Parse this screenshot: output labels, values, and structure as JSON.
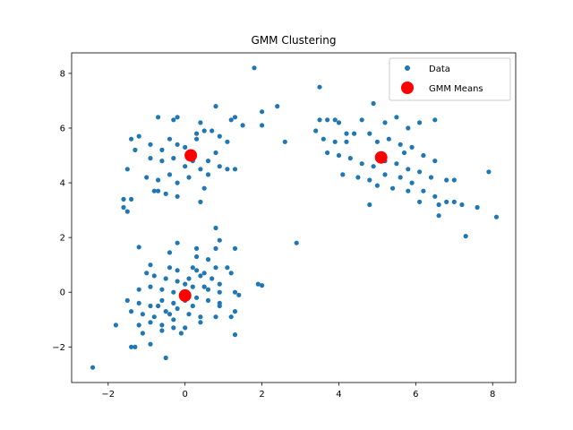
{
  "chart_data": {
    "type": "scatter",
    "title": "GMM Clustering",
    "xlabel": "",
    "ylabel": "",
    "xlim": [
      -2.95,
      8.6
    ],
    "ylim": [
      -3.3,
      8.75
    ],
    "xticks": [
      -2,
      0,
      2,
      4,
      6,
      8
    ],
    "yticks": [
      -2,
      0,
      2,
      4,
      6,
      8
    ],
    "xtick_labels": [
      "−2",
      "0",
      "2",
      "4",
      "6",
      "8"
    ],
    "ytick_labels": [
      "−2",
      "0",
      "2",
      "4",
      "6",
      "8"
    ],
    "grid": false,
    "legend": {
      "placement": "top-right",
      "entries": [
        "Data",
        "GMM Means"
      ]
    },
    "series": [
      {
        "name": "Data",
        "color": "#1f77b4",
        "marker": "circle-small",
        "points": [
          [
            -0.2,
            6.4
          ],
          [
            0.8,
            6.8
          ],
          [
            -0.7,
            6.4
          ],
          [
            -0.3,
            6.3
          ],
          [
            0.4,
            6.2
          ],
          [
            1.2,
            6.3
          ],
          [
            1.3,
            6.4
          ],
          [
            1.5,
            6.1
          ],
          [
            0.5,
            5.9
          ],
          [
            0.3,
            5.6
          ],
          [
            -1.4,
            5.6
          ],
          [
            -1.3,
            5.2
          ],
          [
            -1.2,
            5.7
          ],
          [
            -0.9,
            5.4
          ],
          [
            -0.6,
            5.2
          ],
          [
            -0.4,
            5.6
          ],
          [
            -0.2,
            5.4
          ],
          [
            0.0,
            5.3
          ],
          [
            0.3,
            5.8
          ],
          [
            0.7,
            5.9
          ],
          [
            0.9,
            5.7
          ],
          [
            1.1,
            5.5
          ],
          [
            0.8,
            5.1
          ],
          [
            0.6,
            4.8
          ],
          [
            0.9,
            4.6
          ],
          [
            1.1,
            4.5
          ],
          [
            1.3,
            4.5
          ],
          [
            -0.9,
            4.9
          ],
          [
            -0.6,
            4.8
          ],
          [
            -0.3,
            4.9
          ],
          [
            0.0,
            4.6
          ],
          [
            0.2,
            4.8
          ],
          [
            0.4,
            4.5
          ],
          [
            0.6,
            4.3
          ],
          [
            -1.5,
            4.5
          ],
          [
            -1.0,
            4.2
          ],
          [
            -0.7,
            4.1
          ],
          [
            -0.4,
            4.3
          ],
          [
            -0.2,
            4.0
          ],
          [
            0.1,
            4.2
          ],
          [
            0.5,
            3.8
          ],
          [
            -0.7,
            3.7
          ],
          [
            -0.5,
            3.6
          ],
          [
            -0.2,
            3.5
          ],
          [
            -1.6,
            3.4
          ],
          [
            -1.4,
            3.4
          ],
          [
            -1.6,
            3.1
          ],
          [
            -1.5,
            2.95
          ],
          [
            0.4,
            3.3
          ],
          [
            -0.8,
            3.7
          ],
          [
            1.8,
            8.2
          ],
          [
            2.0,
            6.6
          ],
          [
            2.4,
            6.8
          ],
          [
            2.0,
            6.1
          ],
          [
            2.6,
            5.5
          ],
          [
            3.5,
            7.5
          ],
          [
            3.5,
            6.3
          ],
          [
            3.7,
            6.3
          ],
          [
            3.9,
            6.3
          ],
          [
            4.0,
            6.2
          ],
          [
            4.6,
            6.3
          ],
          [
            4.9,
            6.9
          ],
          [
            5.2,
            6.2
          ],
          [
            5.5,
            6.4
          ],
          [
            5.8,
            6.0
          ],
          [
            6.1,
            6.2
          ],
          [
            6.5,
            6.3
          ],
          [
            3.4,
            5.9
          ],
          [
            3.6,
            5.6
          ],
          [
            3.9,
            5.5
          ],
          [
            4.2,
            5.5
          ],
          [
            4.4,
            5.8
          ],
          [
            4.8,
            5.8
          ],
          [
            5.0,
            5.5
          ],
          [
            5.3,
            5.6
          ],
          [
            5.6,
            5.4
          ],
          [
            5.9,
            5.3
          ],
          [
            6.2,
            5.0
          ],
          [
            6.5,
            4.8
          ],
          [
            3.7,
            5.1
          ],
          [
            4.0,
            5.0
          ],
          [
            4.3,
            4.9
          ],
          [
            4.6,
            4.7
          ],
          [
            4.9,
            4.6
          ],
          [
            5.2,
            4.8
          ],
          [
            5.5,
            4.7
          ],
          [
            5.8,
            4.5
          ],
          [
            6.1,
            4.4
          ],
          [
            6.4,
            4.2
          ],
          [
            6.8,
            4.1
          ],
          [
            4.1,
            4.3
          ],
          [
            4.5,
            4.2
          ],
          [
            4.8,
            4.1
          ],
          [
            5.2,
            4.3
          ],
          [
            5.6,
            4.2
          ],
          [
            5.9,
            4.0
          ],
          [
            6.2,
            3.7
          ],
          [
            6.5,
            3.5
          ],
          [
            6.8,
            3.3
          ],
          [
            7.0,
            4.1
          ],
          [
            5.0,
            3.9
          ],
          [
            5.4,
            3.8
          ],
          [
            5.8,
            3.7
          ],
          [
            6.1,
            3.3
          ],
          [
            6.6,
            3.2
          ],
          [
            7.0,
            3.3
          ],
          [
            7.2,
            3.2
          ],
          [
            7.6,
            3.1
          ],
          [
            7.9,
            4.4
          ],
          [
            8.1,
            2.75
          ],
          [
            7.3,
            2.05
          ],
          [
            6.6,
            2.8
          ],
          [
            4.8,
            3.2
          ],
          [
            4.2,
            5.8
          ],
          [
            5.7,
            5.1
          ],
          [
            2.9,
            1.8
          ],
          [
            0.8,
            2.35
          ],
          [
            0.9,
            1.9
          ],
          [
            0.8,
            1.6
          ],
          [
            1.3,
            1.6
          ],
          [
            0.3,
            1.6
          ],
          [
            -0.2,
            1.8
          ],
          [
            -1.2,
            1.65
          ],
          [
            -0.4,
            1.45
          ],
          [
            0.3,
            1.3
          ],
          [
            0.6,
            1.2
          ],
          [
            -0.9,
            1.0
          ],
          [
            -0.4,
            0.9
          ],
          [
            -0.2,
            0.8
          ],
          [
            0.2,
            0.9
          ],
          [
            0.5,
            0.7
          ],
          [
            0.8,
            0.9
          ],
          [
            1.1,
            0.9
          ],
          [
            1.2,
            0.7
          ],
          [
            -0.8,
            0.6
          ],
          [
            -0.5,
            0.5
          ],
          [
            -0.2,
            0.4
          ],
          [
            0.1,
            0.5
          ],
          [
            0.4,
            0.6
          ],
          [
            0.7,
            0.5
          ],
          [
            0.9,
            0.3
          ],
          [
            1.9,
            0.3
          ],
          [
            2.0,
            0.25
          ],
          [
            -1.2,
            0.1
          ],
          [
            -0.9,
            0.2
          ],
          [
            -0.6,
            0.1
          ],
          [
            -0.3,
            0.0
          ],
          [
            0.2,
            0.2
          ],
          [
            0.6,
            0.1
          ],
          [
            0.9,
            0.0
          ],
          [
            1.4,
            -0.1
          ],
          [
            1.3,
            0.0
          ],
          [
            -1.5,
            -0.3
          ],
          [
            -1.2,
            -0.4
          ],
          [
            -0.9,
            -0.5
          ],
          [
            -0.6,
            -0.3
          ],
          [
            -0.3,
            -0.4
          ],
          [
            0.0,
            -0.3
          ],
          [
            0.3,
            -0.2
          ],
          [
            0.6,
            -0.3
          ],
          [
            0.9,
            -0.4
          ],
          [
            1.3,
            -0.7
          ],
          [
            -1.4,
            -0.7
          ],
          [
            -1.1,
            -0.8
          ],
          [
            -0.8,
            -0.9
          ],
          [
            -0.5,
            -0.7
          ],
          [
            -0.2,
            -0.6
          ],
          [
            0.1,
            -0.8
          ],
          [
            0.4,
            -0.9
          ],
          [
            -1.8,
            -1.2
          ],
          [
            -1.2,
            -1.2
          ],
          [
            -0.9,
            -1.1
          ],
          [
            -0.6,
            -1.2
          ],
          [
            -0.3,
            -1.0
          ],
          [
            0.0,
            -1.3
          ],
          [
            0.4,
            -1.1
          ],
          [
            0.8,
            -0.9
          ],
          [
            1.2,
            -0.9
          ],
          [
            -1.1,
            -1.5
          ],
          [
            -0.6,
            -1.4
          ],
          [
            -0.3,
            -1.3
          ],
          [
            1.3,
            -1.55
          ],
          [
            -1.4,
            -2.0
          ],
          [
            -1.3,
            -2.0
          ],
          [
            -0.9,
            -1.9
          ],
          [
            -0.5,
            -2.4
          ],
          [
            -2.4,
            -2.75
          ],
          [
            -0.1,
            -1.5
          ],
          [
            0.9,
            -0.5
          ],
          [
            -0.7,
            -0.5
          ],
          [
            0.2,
            -0.5
          ],
          [
            0.5,
            0.2
          ],
          [
            -1.0,
            0.7
          ],
          [
            0.3,
            0.8
          ],
          [
            -0.4,
            -0.8
          ],
          [
            0.0,
            0.3
          ]
        ]
      },
      {
        "name": "GMM Means",
        "color": "#ff0000",
        "marker": "circle-large",
        "points": [
          [
            0.15,
            5.0
          ],
          [
            5.1,
            4.93
          ],
          [
            0.0,
            -0.12
          ]
        ]
      }
    ]
  }
}
